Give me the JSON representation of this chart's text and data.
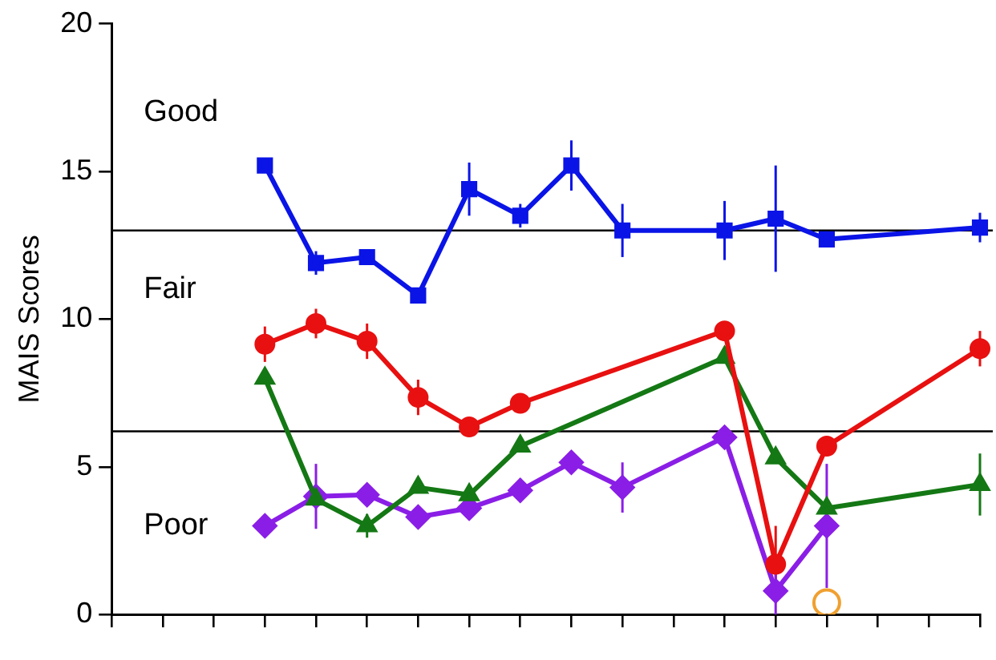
{
  "chart_data": {
    "type": "line",
    "ylabel": "MAIS Scores",
    "categories": [
      null,
      null,
      null,
      null,
      null,
      null,
      null,
      null,
      null,
      null,
      null,
      null,
      null,
      null,
      null,
      null,
      null,
      null
    ],
    "ylim": [
      0,
      20
    ],
    "yticks": [
      0,
      5,
      10,
      15,
      20
    ],
    "grid": false,
    "legend": false,
    "series": [
      {
        "color": "#0a14e6",
        "marker": "square",
        "values": [
          null,
          null,
          null,
          15.2,
          11.9,
          12.1,
          10.8,
          14.4,
          13.5,
          15.2,
          13.0,
          null,
          13.0,
          13.4,
          12.7,
          null,
          null,
          13.1
        ],
        "errors": [
          null,
          null,
          null,
          null,
          0.4,
          null,
          null,
          0.9,
          0.4,
          0.85,
          0.9,
          null,
          1.0,
          1.8,
          null,
          null,
          null,
          0.5
        ]
      },
      {
        "color": "#e81010",
        "marker": "circle",
        "values": [
          null,
          null,
          null,
          9.15,
          9.85,
          9.25,
          7.35,
          6.35,
          7.15,
          null,
          null,
          null,
          9.6,
          1.7,
          5.7,
          null,
          null,
          9.0
        ],
        "errors": [
          null,
          null,
          null,
          0.6,
          0.5,
          0.6,
          0.6,
          null,
          null,
          null,
          null,
          null,
          null,
          1.3,
          null,
          null,
          null,
          0.6
        ]
      },
      {
        "color": "#147814",
        "marker": "triangle",
        "values": [
          null,
          null,
          null,
          8.0,
          3.9,
          3.0,
          4.3,
          4.05,
          5.7,
          null,
          null,
          null,
          8.7,
          5.3,
          3.6,
          null,
          null,
          4.4
        ],
        "errors": [
          null,
          null,
          null,
          null,
          null,
          0.4,
          null,
          null,
          null,
          null,
          null,
          null,
          null,
          null,
          null,
          null,
          null,
          1.05
        ]
      },
      {
        "color": "#8a1ee6",
        "marker": "diamond",
        "values": [
          null,
          null,
          null,
          3.0,
          4.0,
          4.05,
          3.3,
          3.6,
          4.2,
          5.15,
          4.3,
          null,
          6.0,
          0.8,
          3.0,
          null,
          null,
          null
        ],
        "errors": [
          null,
          null,
          null,
          null,
          1.1,
          null,
          null,
          null,
          0.4,
          null,
          0.85,
          null,
          null,
          0.8,
          2.1,
          null,
          null,
          null
        ]
      },
      {
        "type": "scatter",
        "color": "#f0a030",
        "marker": "circle",
        "values": [
          null,
          null,
          null,
          null,
          null,
          null,
          null,
          null,
          null,
          null,
          null,
          null,
          null,
          null,
          0.4,
          null,
          null,
          null
        ]
      }
    ],
    "ref_lines": [
      {
        "axis": "y",
        "value": 13.0,
        "color": "#000000"
      },
      {
        "axis": "y",
        "value": 6.2,
        "color": "#000000"
      }
    ],
    "annotations": [
      "Good",
      "Fair",
      "Poor"
    ]
  }
}
